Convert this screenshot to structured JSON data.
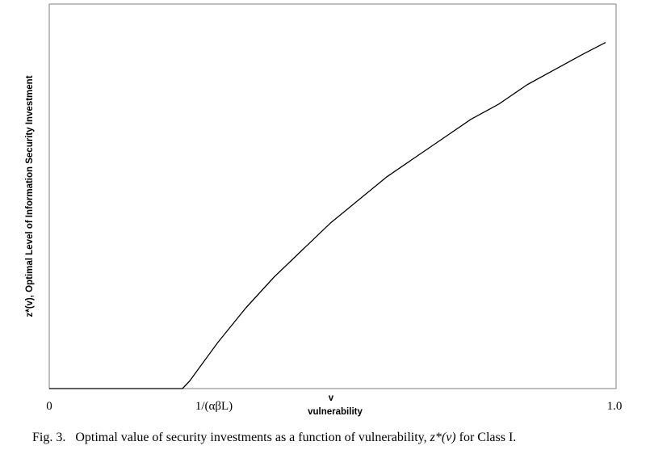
{
  "chart_data": {
    "type": "line",
    "title": "",
    "xlabel_top": "v",
    "xlabel": "vulnerability",
    "ylabel": "z*(v), Optimal Level of Information Security Investment",
    "x_tick_labels": [
      {
        "label": "0",
        "value": 0.0
      },
      {
        "label": "1/(αβL)",
        "value": 0.25
      },
      {
        "label": "1.0",
        "value": 1.0
      }
    ],
    "xlim": [
      0,
      1.0
    ],
    "ylim": [
      0,
      1.0
    ],
    "grid": false,
    "legend": "none",
    "series": [
      {
        "x": [
          0.0,
          0.05,
          0.1,
          0.15,
          0.2,
          0.237,
          0.25,
          0.27,
          0.3,
          0.35,
          0.4,
          0.45,
          0.5,
          0.55,
          0.6,
          0.65,
          0.7,
          0.75,
          0.8,
          0.85,
          0.9,
          0.95,
          0.99
        ],
        "y": [
          0.0,
          0.0,
          0.0,
          0.0,
          0.0,
          0.0,
          0.02,
          0.06,
          0.12,
          0.21,
          0.29,
          0.36,
          0.43,
          0.49,
          0.55,
          0.6,
          0.65,
          0.7,
          0.74,
          0.79,
          0.83,
          0.87,
          0.9
        ],
        "color": "#000000"
      }
    ]
  },
  "caption": {
    "fig_num": "Fig. 3.",
    "text": "Optimal value of security investments as a function of vulnerability,",
    "math": "z*(v)",
    "suffix": "for Class I."
  }
}
